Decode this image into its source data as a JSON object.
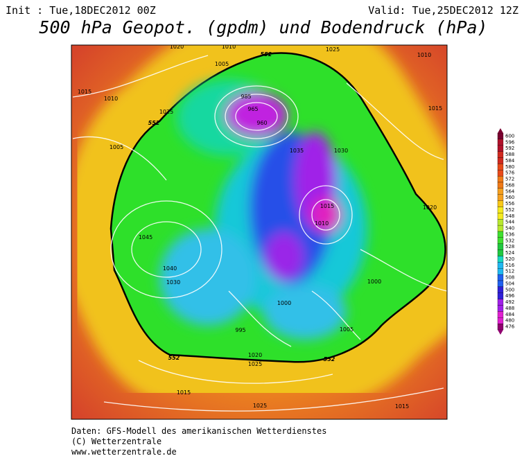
{
  "header": {
    "init": "Init : Tue,18DEC2012 00Z",
    "valid": "Valid: Tue,25DEC2012 12Z",
    "title": "500 hPa Geopot. (gpdm) und Bodendruck (hPa)"
  },
  "colorbar": {
    "values": [
      600,
      596,
      592,
      588,
      584,
      580,
      576,
      572,
      568,
      564,
      560,
      556,
      552,
      548,
      544,
      540,
      536,
      532,
      528,
      524,
      520,
      516,
      512,
      508,
      504,
      500,
      496,
      492,
      488,
      484,
      480,
      476
    ]
  },
  "map": {
    "isobar_labels": [
      "1020",
      "1010",
      "1025",
      "1010",
      "1005",
      "1015",
      "1010",
      "1025",
      "985",
      "965",
      "960",
      "1035",
      "1030",
      "1015",
      "1010",
      "1045",
      "1040",
      "1030",
      "1000",
      "995",
      "1020",
      "1025",
      "1015",
      "1025",
      "1015",
      "1020",
      "1015",
      "1000",
      "1005",
      "1005"
    ],
    "contour_labels": [
      "552",
      "552",
      "552",
      "552"
    ]
  },
  "footer": {
    "lines": [
      "Daten: GFS-Modell des amerikanischen Wetterdienstes",
      "(C) Wetterzentrale",
      "www.wetterzentrale.de"
    ]
  }
}
